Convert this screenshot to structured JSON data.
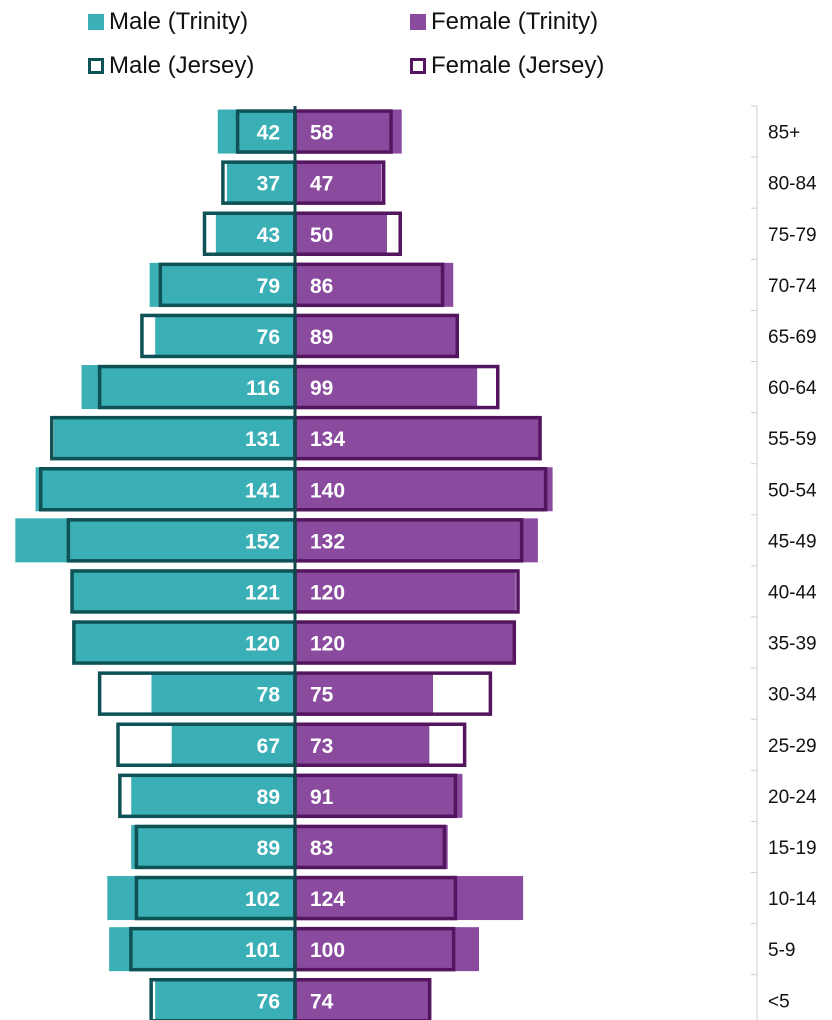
{
  "legend": {
    "items": [
      {
        "label": "Male (Trinity)",
        "kind": "fill",
        "color": "#3aafb6"
      },
      {
        "label": "Female (Trinity)",
        "kind": "fill",
        "color": "#8a4a9e"
      },
      {
        "label": "Male (Jersey)",
        "kind": "outline",
        "color": "#0e5256"
      },
      {
        "label": "Female (Jersey)",
        "kind": "outline",
        "color": "#54155f"
      }
    ]
  },
  "chart_data": {
    "type": "bar",
    "orientation": "horizontal",
    "layout": "population-pyramid",
    "categories": [
      "85+",
      "80-84",
      "75-79",
      "70-74",
      "65-69",
      "60-64",
      "55-59",
      "50-54",
      "45-49",
      "40-44",
      "35-39",
      "30-34",
      "25-29",
      "20-24",
      "15-19",
      "10-14",
      "5-9",
      "<5"
    ],
    "series": [
      {
        "name": "Male (Trinity)",
        "side": "left",
        "style": "fill",
        "color": "#3aafb6",
        "values": [
          42,
          37,
          43,
          79,
          76,
          116,
          131,
          141,
          152,
          121,
          120,
          78,
          67,
          89,
          89,
          102,
          101,
          76
        ],
        "labels_shown": true
      },
      {
        "name": "Female (Trinity)",
        "side": "right",
        "style": "fill",
        "color": "#8a4a9e",
        "values": [
          58,
          47,
          50,
          86,
          89,
          99,
          134,
          140,
          132,
          120,
          120,
          75,
          73,
          91,
          83,
          124,
          100,
          74
        ],
        "labels_shown": true
      },
      {
        "name": "Male (Jersey)",
        "side": "left",
        "style": "outline",
        "color": "#0e5256",
        "values": [
          32,
          40,
          50,
          74,
          84,
          107,
          133,
          139,
          124,
          122,
          121,
          107,
          97,
          96,
          87,
          87,
          90,
          79
        ],
        "labels_shown": false
      },
      {
        "name": "Female (Jersey)",
        "side": "right",
        "style": "outline",
        "color": "#54155f",
        "values": [
          53,
          49,
          58,
          81,
          89,
          111,
          134,
          137,
          124,
          122,
          120,
          107,
          93,
          88,
          82,
          88,
          87,
          74
        ],
        "labels_shown": false
      }
    ],
    "xlim": [
      -155,
      155
    ],
    "grid": false
  }
}
